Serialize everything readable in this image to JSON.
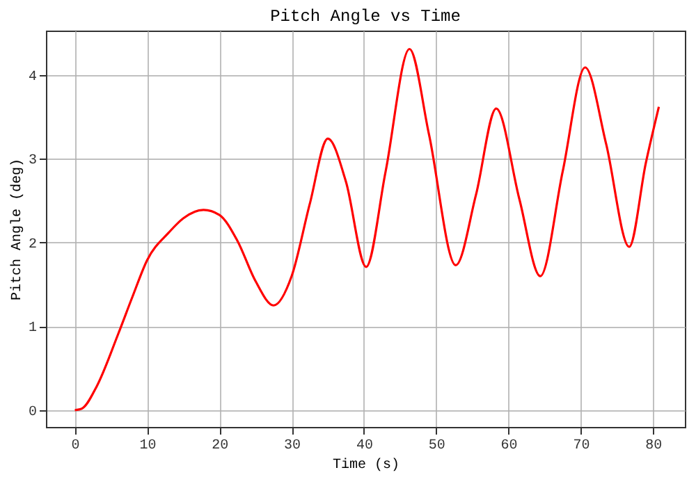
{
  "chart_data": {
    "type": "line",
    "title": "Pitch Angle vs Time",
    "xlabel": "Time (s)",
    "ylabel": "Pitch Angle (deg)",
    "series": [
      {
        "color": "#ff0000",
        "x": [
          0,
          1,
          3,
          6,
          8,
          10,
          13,
          15,
          17.8,
          20,
          22.5,
          25,
          27.5,
          30,
          32.5,
          35,
          37.5,
          40.3,
          43,
          46.3,
          49,
          52.7,
          55.5,
          58.3,
          61.5,
          64.4,
          67.5,
          70.6,
          73.5,
          76.7,
          79,
          80.8
        ],
        "values": [
          0,
          0.02,
          0.28,
          0.91,
          1.36,
          1.79,
          2.12,
          2.29,
          2.39,
          2.33,
          2.02,
          1.54,
          1.25,
          1.6,
          2.46,
          3.24,
          2.73,
          1.71,
          2.85,
          4.31,
          3.29,
          1.73,
          2.57,
          3.6,
          2.52,
          1.6,
          2.85,
          4.09,
          3.18,
          1.95,
          2.95,
          3.62
        ]
      }
    ],
    "xlim": [
      -4,
      84.4
    ],
    "ylim": [
      -0.2,
      4.53
    ],
    "xticks": [
      0,
      10,
      20,
      30,
      40,
      50,
      60,
      70,
      80
    ],
    "yticks": [
      0,
      1,
      2,
      3,
      4
    ],
    "grid": true,
    "marker": "none",
    "line_style": "solid"
  }
}
